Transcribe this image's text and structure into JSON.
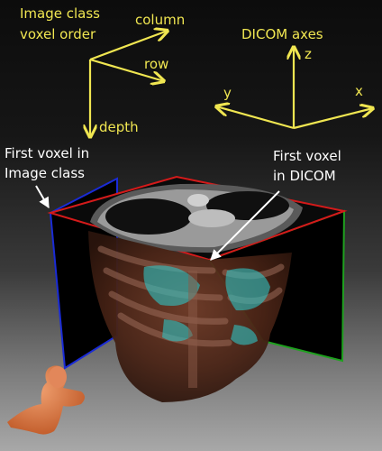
{
  "labels": {
    "image_class_line1": "Image class",
    "image_class_line2": "voxel order",
    "column": "column",
    "row": "row",
    "depth": "depth",
    "dicom_axes": "DICOM axes",
    "axis_x": "x",
    "axis_y": "y",
    "axis_z": "z",
    "first_voxel_image_line1": "First voxel in",
    "first_voxel_image_line2": "Image class",
    "first_voxel_dicom_line1": "First voxel",
    "first_voxel_dicom_line2": "in DICOM"
  },
  "colors": {
    "axis_arrows": "#f0e651",
    "label_text": "#ffffff",
    "image_class_axes": "#f0e651",
    "left_plane_edge": "#1a2bd6",
    "right_plane_edge": "#1ea11e",
    "axial_slice_edge": "#d41a1a"
  },
  "icons": {
    "orientation_marker": "human-torso-icon"
  }
}
